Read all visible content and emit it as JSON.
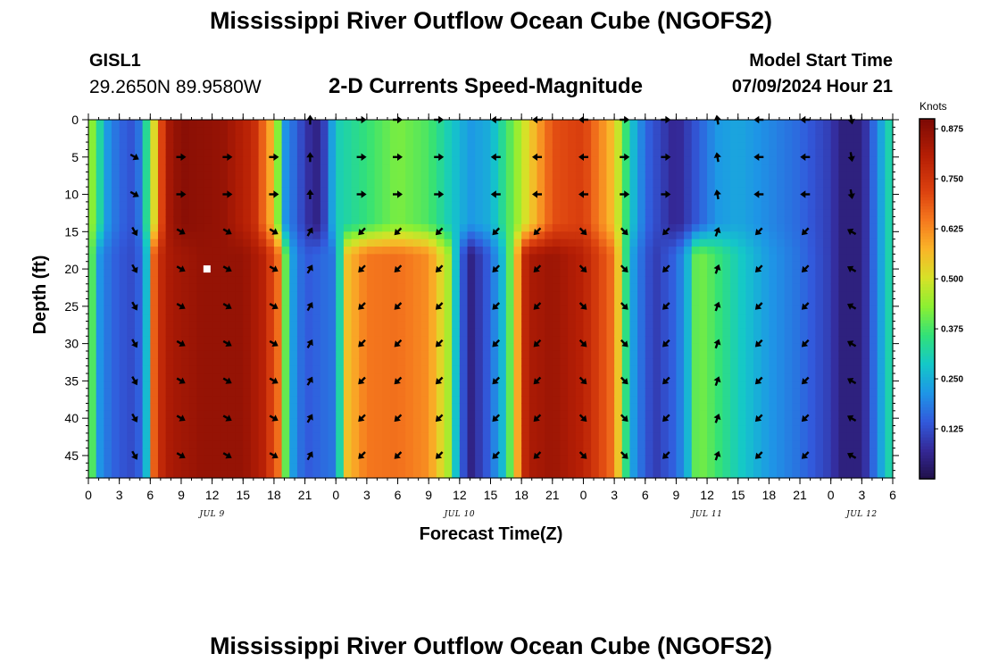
{
  "header": {
    "title": "Mississippi River Outflow Ocean Cube (NGOFS2)",
    "station_name": "GISL1",
    "station_coords": "29.2650N  89.9580W",
    "subtitle": "2-D Currents Speed-Magnitude",
    "model_start_label": "Model Start Time",
    "model_start_value": "07/09/2024 Hour 21"
  },
  "footer": {
    "title": "Mississippi River Outflow Ocean Cube (NGOFS2)"
  },
  "chart_data": {
    "type": "heatmap",
    "title": "2-D Currents Speed-Magnitude",
    "xlabel": "Forecast Time(Z)",
    "ylabel": "Depth (ft)",
    "xlim": [
      0,
      78
    ],
    "ylim": [
      48,
      0
    ],
    "x_ticks": {
      "values": [
        0,
        3,
        6,
        9,
        12,
        15,
        18,
        21,
        24,
        27,
        30,
        33,
        36,
        39,
        42,
        45,
        48,
        51,
        54,
        57,
        60,
        63,
        66,
        69,
        72,
        75,
        78
      ],
      "labels": [
        "0",
        "3",
        "6",
        "9",
        "12",
        "15",
        "18",
        "21",
        "0",
        "3",
        "6",
        "9",
        "12",
        "15",
        "18",
        "21",
        "0",
        "3",
        "6",
        "9",
        "12",
        "15",
        "18",
        "21",
        "0",
        "3",
        "6"
      ]
    },
    "day_labels": [
      {
        "x": 12,
        "label": "JUL 9"
      },
      {
        "x": 36,
        "label": "JUL 10"
      },
      {
        "x": 60,
        "label": "JUL 11"
      },
      {
        "x": 75,
        "label": "JUL 12"
      }
    ],
    "y_ticks": [
      0,
      5,
      10,
      15,
      20,
      25,
      30,
      35,
      40,
      45
    ],
    "colorbar": {
      "label": "Knots",
      "min": 0,
      "max": 0.9,
      "ticks": [
        "0.125",
        "0.250",
        "0.375",
        "0.500",
        "0.625",
        "0.750",
        "0.875"
      ]
    },
    "speed_profiles": {
      "upper_0_15ft": {
        "t": [
          0,
          2,
          4,
          5,
          6.5,
          7.5,
          9,
          13,
          16,
          18,
          19,
          21,
          22,
          23,
          24,
          30,
          33,
          35,
          37,
          39,
          41,
          45,
          48,
          51,
          52.5,
          54,
          57,
          59,
          61,
          63,
          66,
          69,
          72,
          73,
          75,
          76.5,
          78
        ],
        "v": [
          0.48,
          0.2,
          0.13,
          0.18,
          0.55,
          0.82,
          0.88,
          0.86,
          0.78,
          0.55,
          0.22,
          0.1,
          0.05,
          0.12,
          0.3,
          0.42,
          0.38,
          0.3,
          0.22,
          0.25,
          0.4,
          0.7,
          0.73,
          0.55,
          0.3,
          0.16,
          0.06,
          0.14,
          0.22,
          0.24,
          0.2,
          0.16,
          0.1,
          0.05,
          0.05,
          0.2,
          0.35
        ]
      },
      "lower_15_48ft": {
        "t": [
          0,
          1,
          2,
          3,
          4.5,
          5.5,
          6.5,
          8,
          11,
          15,
          17,
          18.5,
          19.5,
          21,
          22.5,
          24,
          25,
          27,
          30,
          33,
          35,
          36,
          37,
          39,
          40.5,
          42.5,
          45,
          48,
          51,
          52.5,
          54,
          55,
          57,
          58,
          59,
          60,
          63,
          66,
          69,
          72,
          73,
          75,
          76.5,
          78
        ],
        "v": [
          0.48,
          0.22,
          0.17,
          0.14,
          0.12,
          0.2,
          0.75,
          0.83,
          0.86,
          0.86,
          0.8,
          0.65,
          0.25,
          0.14,
          0.16,
          0.18,
          0.55,
          0.65,
          0.66,
          0.62,
          0.45,
          0.18,
          0.05,
          0.16,
          0.3,
          0.82,
          0.85,
          0.8,
          0.65,
          0.25,
          0.14,
          0.1,
          0.16,
          0.24,
          0.42,
          0.4,
          0.3,
          0.22,
          0.17,
          0.1,
          0.05,
          0.05,
          0.2,
          0.35
        ]
      }
    },
    "vectors": {
      "times": [
        4.5,
        9,
        13.5,
        18,
        21.5,
        26.5,
        30,
        34,
        39.5,
        43.5,
        48,
        52,
        56,
        61,
        65,
        69.5,
        74
      ],
      "depths": [
        0,
        5,
        10,
        15,
        20,
        25,
        30,
        35,
        40,
        45
      ],
      "upper_angles_deg": [
        30,
        0,
        0,
        0,
        -90,
        0,
        0,
        0,
        180,
        180,
        180,
        0,
        0,
        -100,
        180,
        180,
        80
      ],
      "lower_angles_deg": [
        60,
        30,
        30,
        30,
        -60,
        135,
        135,
        135,
        135,
        135,
        45,
        45,
        135,
        -70,
        135,
        135,
        -150
      ],
      "missing": [
        [
          0,
          4.5
        ],
        [
          0,
          9
        ],
        [
          0,
          13.5
        ],
        [
          0,
          18
        ]
      ]
    },
    "marker": {
      "x": 11.5,
      "y": 20
    }
  }
}
